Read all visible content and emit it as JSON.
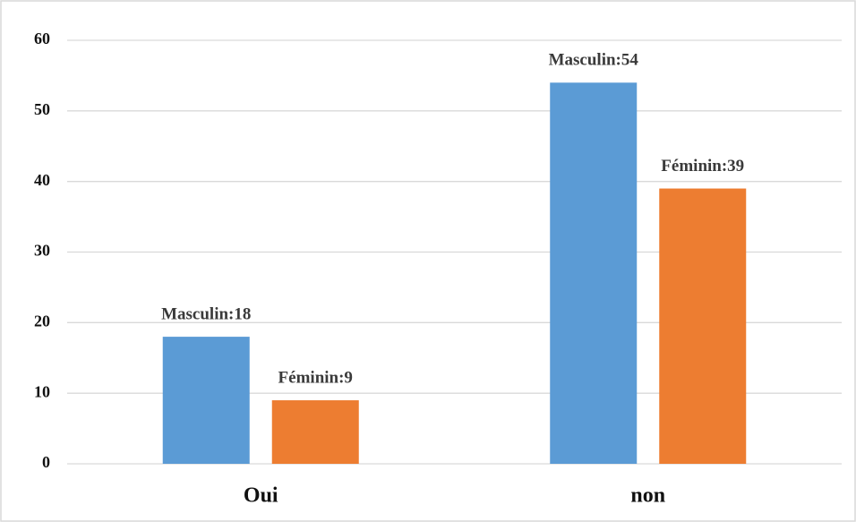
{
  "chart_data": {
    "type": "bar",
    "categories": [
      "Oui",
      "non"
    ],
    "series": [
      {
        "color": "#5b9bd5",
        "values": [
          18,
          54
        ],
        "value_labels": [
          "Masculin:18",
          "Masculin:54"
        ]
      },
      {
        "color": "#ed7d31",
        "values": [
          9,
          39
        ],
        "value_labels": [
          "Féminin:9",
          "Féminin:39"
        ]
      }
    ],
    "ylim": [
      0,
      60
    ],
    "yticks": [
      0,
      10,
      20,
      30,
      40,
      50,
      60
    ],
    "grid": true
  }
}
